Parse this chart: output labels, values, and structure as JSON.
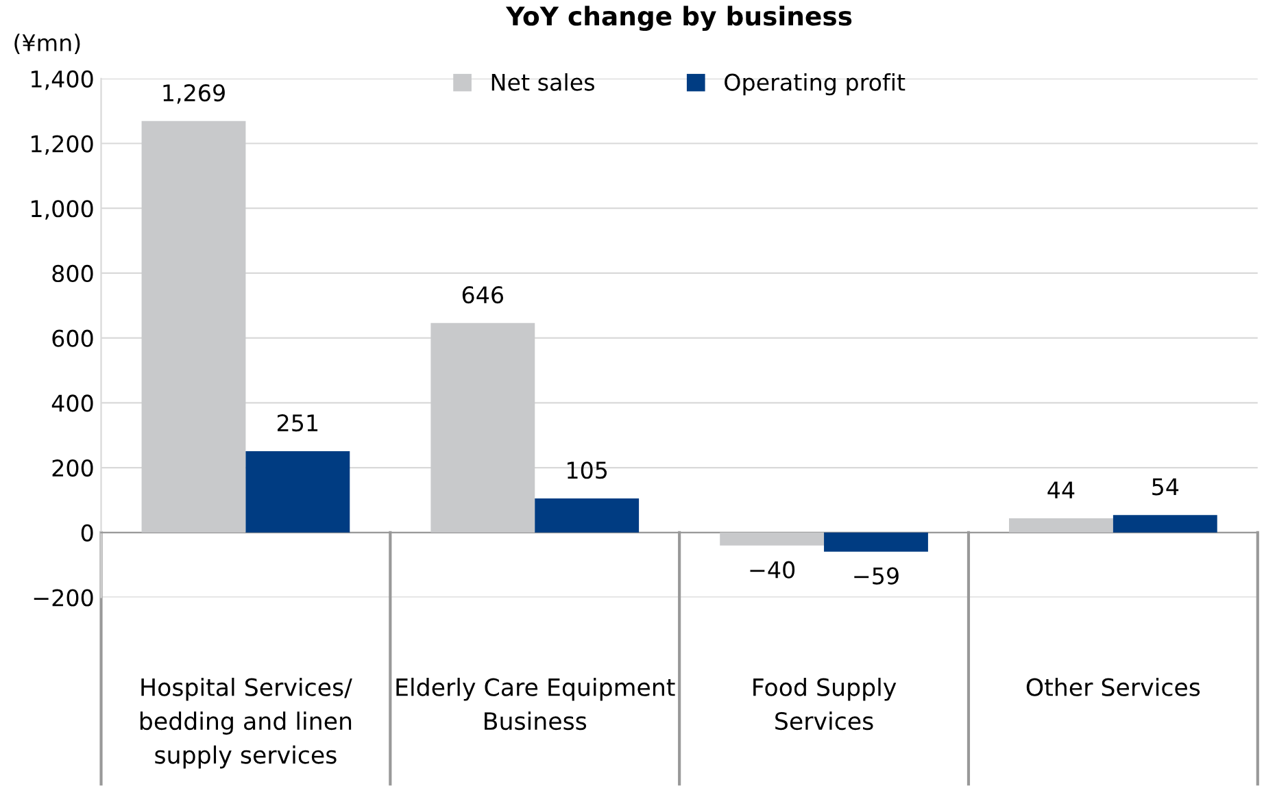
{
  "chart_data": {
    "type": "bar",
    "title": "YoY change by business",
    "ylabel": "(¥mn)",
    "categories": [
      "Hospital Services/\nbedding and linen\nsupply services",
      "Elderly Care Equipment\nBusiness",
      "Food Supply\nServices",
      "Other Services"
    ],
    "series": [
      {
        "name": "Net sales",
        "color": "#c8c9cb",
        "values": [
          1269,
          646,
          -40,
          44
        ],
        "value_labels": [
          "1,269",
          "646",
          "−40",
          "44"
        ]
      },
      {
        "name": "Operating profit",
        "color": "#003c82",
        "values": [
          251,
          105,
          -59,
          54
        ],
        "value_labels": [
          "251",
          "105",
          "−59",
          "54"
        ]
      }
    ],
    "ylim": [
      -200,
      1400
    ],
    "yticks": [
      {
        "value": -200,
        "label": "−200"
      },
      0,
      200,
      400,
      600,
      800,
      {
        "value": 1000,
        "label": "1,000"
      },
      {
        "value": 1200,
        "label": "1,200"
      },
      {
        "value": 1400,
        "label": "1,400"
      }
    ],
    "grid": "y",
    "legend": "top"
  }
}
